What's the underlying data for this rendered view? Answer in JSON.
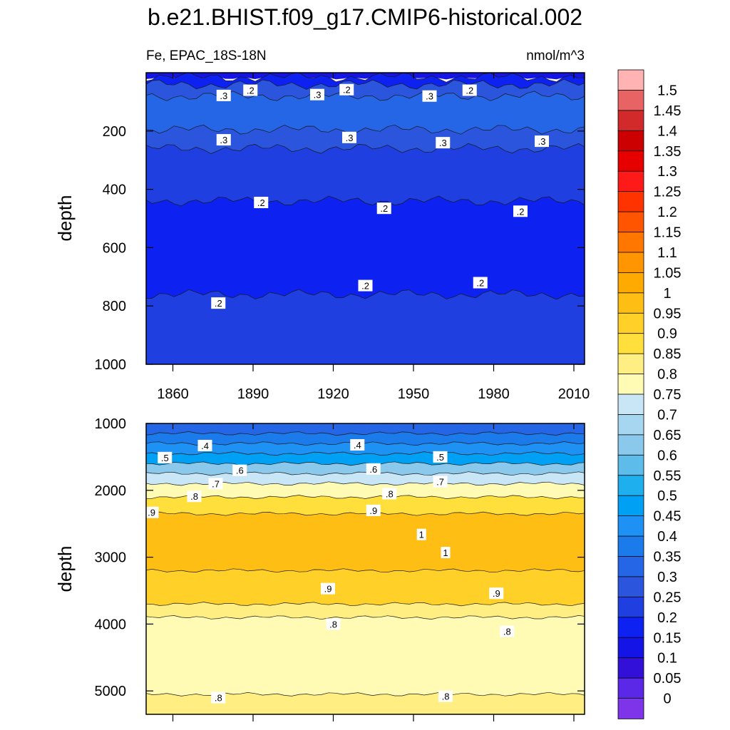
{
  "title": "b.e21.BHIST.f09_g17.CMIP6-historical.002",
  "chart_data": {
    "type": "heatmap",
    "variable": "Fe",
    "region": "EPAC_18S-18N",
    "units": "nmol/m^3",
    "xlabel": "",
    "ylabel": "depth",
    "xlim": [
      1850,
      2014
    ],
    "xticks": [
      "1860",
      "1890",
      "1920",
      "1950",
      "1980",
      "2010"
    ],
    "colorbar": {
      "levels": [
        "1.5",
        "1.45",
        "1.4",
        "1.35",
        "1.3",
        "1.25",
        "1.2",
        "1.15",
        "1.1",
        "1.05",
        "1",
        "0.95",
        "0.9",
        "0.85",
        "0.8",
        "0.75",
        "0.7",
        "0.65",
        "0.6",
        "0.55",
        "0.5",
        "0.45",
        "0.4",
        "0.35",
        "0.3",
        "0.25",
        "0.2",
        "0.15",
        "0.1",
        "0.05",
        "0"
      ],
      "colors": [
        "#FFB3B3",
        "#E86464",
        "#D22A2A",
        "#CC0000",
        "#E60000",
        "#FF1A1A",
        "#FF3300",
        "#FF5500",
        "#FF7700",
        "#FF9500",
        "#FFAA00",
        "#FFBE14",
        "#FFD028",
        "#FFDF3C",
        "#FFEE82",
        "#FFFAB4",
        "#C8E6F5",
        "#A6D6F0",
        "#8AC8EC",
        "#5EBCEA",
        "#1EAFEF",
        "#00A0F5",
        "#1E91F5",
        "#1C7BEB",
        "#2466E6",
        "#2B55DC",
        "#1F3FE0",
        "#0D22F0",
        "#1414E6",
        "#3210D7",
        "#5A28E6",
        "#7E34E8"
      ]
    },
    "panels": [
      {
        "name": "upper",
        "ylim": [
          1000,
          0
        ],
        "yticks": [
          "200",
          "400",
          "600",
          "800",
          "1000"
        ],
        "bands": [
          {
            "from": 0,
            "to": 15,
            "value": 0.1
          },
          {
            "from": 15,
            "to": 40,
            "value": 0.175
          },
          {
            "from": 40,
            "to": 80,
            "value": 0.275
          },
          {
            "from": 80,
            "to": 195,
            "value": 0.325
          },
          {
            "from": 195,
            "to": 260,
            "value": 0.275
          },
          {
            "from": 260,
            "to": 440,
            "value": 0.225
          },
          {
            "from": 440,
            "to": 760,
            "value": 0.175
          },
          {
            "from": 760,
            "to": 1000,
            "value": 0.225
          }
        ],
        "contour_labels": [
          {
            "text": ".3",
            "x": 1879,
            "y": 78
          },
          {
            "text": ".2",
            "x": 1889,
            "y": 60
          },
          {
            "text": ".3",
            "x": 1914,
            "y": 75
          },
          {
            "text": ".2",
            "x": 1925,
            "y": 58
          },
          {
            "text": ".3",
            "x": 1956,
            "y": 80
          },
          {
            "text": ".2",
            "x": 1971,
            "y": 60
          },
          {
            "text": ".3",
            "x": 1879,
            "y": 230
          },
          {
            "text": ".3",
            "x": 1926,
            "y": 222
          },
          {
            "text": ".3",
            "x": 1961,
            "y": 240
          },
          {
            "text": ".3",
            "x": 1998,
            "y": 235
          },
          {
            "text": ".2",
            "x": 1893,
            "y": 445
          },
          {
            "text": ".2",
            "x": 1939,
            "y": 465
          },
          {
            "text": ".2",
            "x": 1990,
            "y": 475
          },
          {
            "text": ".2",
            "x": 1932,
            "y": 730
          },
          {
            "text": ".2",
            "x": 1975,
            "y": 720
          },
          {
            "text": ".2",
            "x": 1877,
            "y": 790
          }
        ]
      },
      {
        "name": "lower",
        "ylim": [
          5350,
          1000
        ],
        "yticks": [
          "1000",
          "2000",
          "3000",
          "4000",
          "5000"
        ],
        "bands": [
          {
            "from": 1000,
            "to": 1150,
            "value": 0.325
          },
          {
            "from": 1150,
            "to": 1300,
            "value": 0.375
          },
          {
            "from": 1300,
            "to": 1450,
            "value": 0.425
          },
          {
            "from": 1450,
            "to": 1600,
            "value": 0.475
          },
          {
            "from": 1600,
            "to": 1750,
            "value": 0.625
          },
          {
            "from": 1750,
            "to": 1900,
            "value": 0.725
          },
          {
            "from": 1900,
            "to": 2100,
            "value": 0.775
          },
          {
            "from": 2100,
            "to": 2350,
            "value": 0.875
          },
          {
            "from": 2350,
            "to": 3200,
            "value": 0.975
          },
          {
            "from": 3200,
            "to": 3700,
            "value": 0.925
          },
          {
            "from": 3700,
            "to": 3900,
            "value": 0.825
          },
          {
            "from": 3900,
            "to": 5050,
            "value": 0.775
          },
          {
            "from": 5050,
            "to": 5350,
            "value": 0.825
          }
        ],
        "contour_labels": [
          {
            "text": ".4",
            "x": 1872,
            "y": 1330
          },
          {
            "text": ".4",
            "x": 1929,
            "y": 1320
          },
          {
            "text": ".5",
            "x": 1857,
            "y": 1510
          },
          {
            "text": ".5",
            "x": 1960,
            "y": 1500
          },
          {
            "text": ".6",
            "x": 1885,
            "y": 1700
          },
          {
            "text": ".6",
            "x": 1935,
            "y": 1680
          },
          {
            "text": ".7",
            "x": 1876,
            "y": 1900
          },
          {
            "text": ".7",
            "x": 1960,
            "y": 1870
          },
          {
            "text": ".8",
            "x": 1868,
            "y": 2090
          },
          {
            "text": ".8",
            "x": 1941,
            "y": 2050
          },
          {
            "text": ".9",
            "x": 1852,
            "y": 2330
          },
          {
            "text": ".9",
            "x": 1935,
            "y": 2300
          },
          {
            "text": "1",
            "x": 1953,
            "y": 2660
          },
          {
            "text": "1",
            "x": 1962,
            "y": 2930
          },
          {
            "text": ".9",
            "x": 1918,
            "y": 3470
          },
          {
            "text": ".9",
            "x": 1981,
            "y": 3540
          },
          {
            "text": ".8",
            "x": 1920,
            "y": 4000
          },
          {
            "text": ".8",
            "x": 1985,
            "y": 4110
          },
          {
            "text": ".8",
            "x": 1877,
            "y": 5100
          },
          {
            "text": ".8",
            "x": 1962,
            "y": 5080
          }
        ]
      }
    ]
  }
}
